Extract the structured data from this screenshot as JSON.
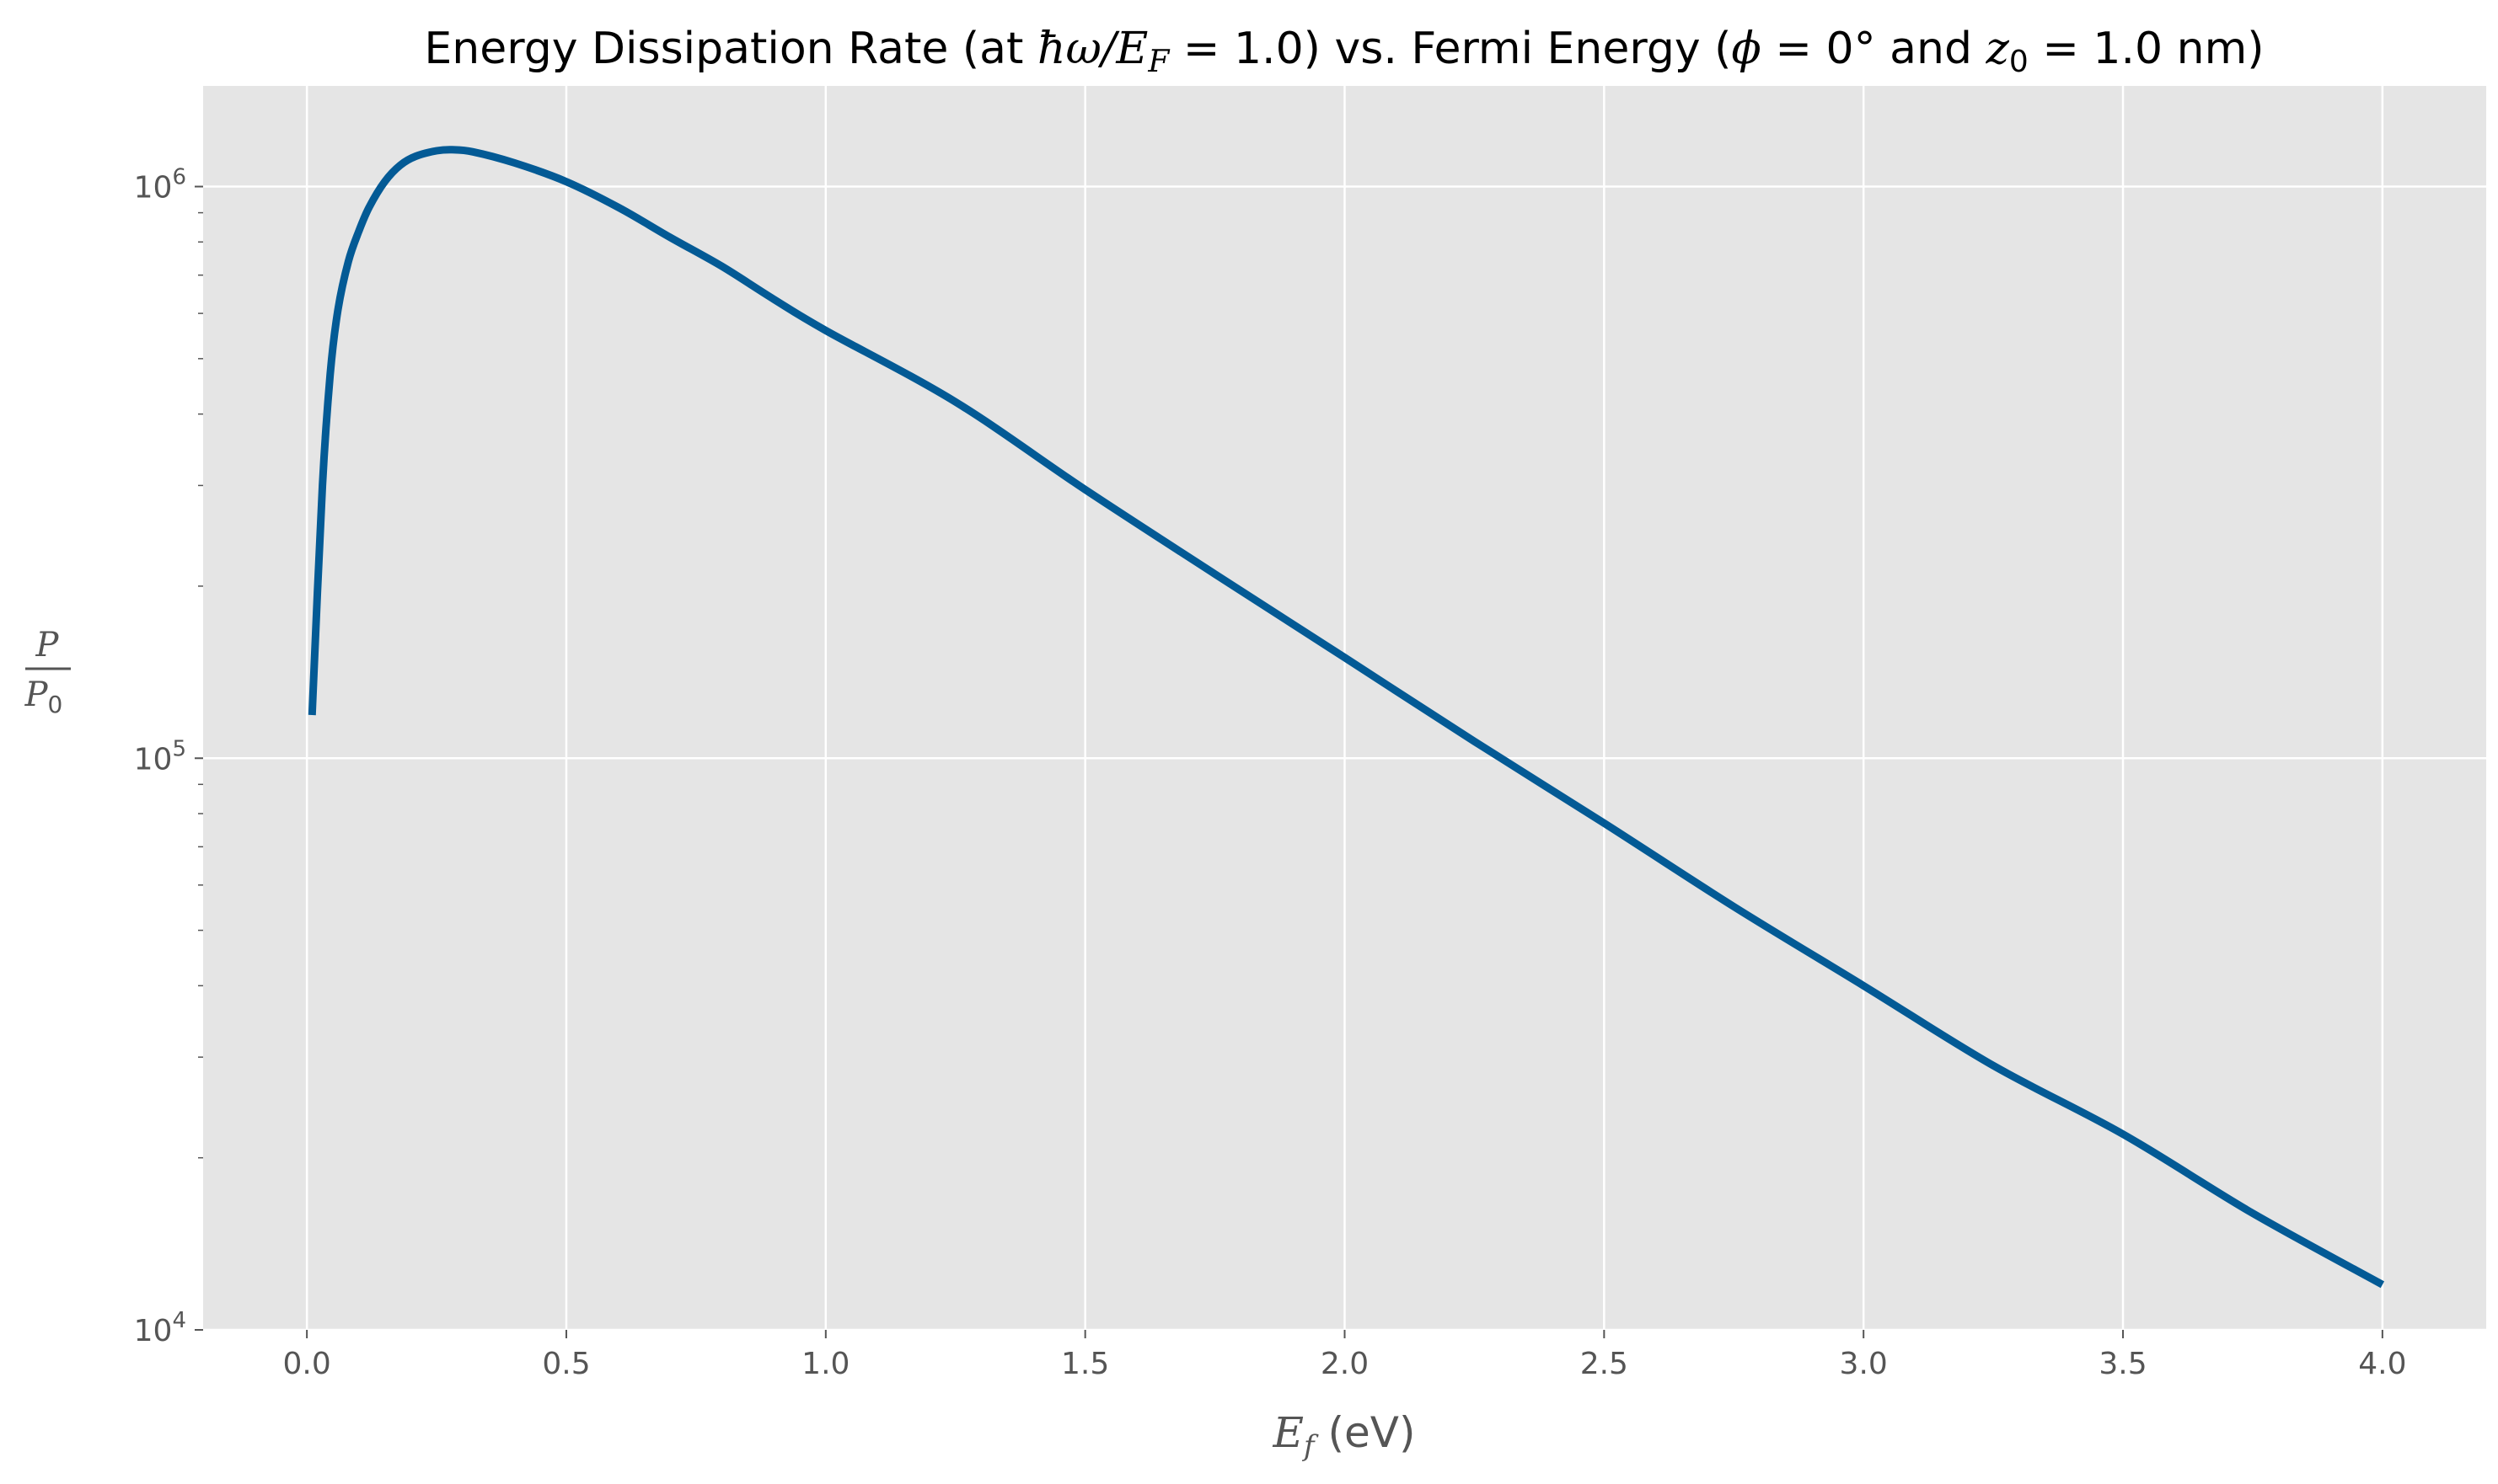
{
  "chart_data": {
    "type": "line",
    "title": {
      "prefix": "Energy Dissipation Rate (at ",
      "math1": "ħω/E",
      "math1_sub": "F",
      "mid1": " = 1.0) vs. Fermi Energy (",
      "math2": "ϕ",
      "mid2": " = 0° and ",
      "math3": "z",
      "math3_sub": "0",
      "suffix": " = 1.0 nm)"
    },
    "xlabel": {
      "math": "E",
      "sub": "f",
      "unit": " (eV)"
    },
    "ylabel": {
      "numerator": "P",
      "denominator": "P",
      "denominator_sub": "0"
    },
    "xlim": [
      -0.2,
      4.2
    ],
    "ylim": [
      10000,
      1500000
    ],
    "yscale": "log",
    "x_ticks": [
      "0.0",
      "0.5",
      "1.0",
      "1.5",
      "2.0",
      "2.5",
      "3.0",
      "3.5",
      "4.0"
    ],
    "x_tick_values": [
      0.0,
      0.5,
      1.0,
      1.5,
      2.0,
      2.5,
      3.0,
      3.5,
      4.0
    ],
    "y_ticks": [
      {
        "value": 10000,
        "base": "10",
        "exp": "4"
      },
      {
        "value": 100000,
        "base": "10",
        "exp": "5"
      },
      {
        "value": 1000000,
        "base": "10",
        "exp": "6"
      }
    ],
    "grid": true,
    "background": "#E5E5E5",
    "grid_color": "#FFFFFF",
    "line_color": "#035A95",
    "series": [
      {
        "x": [
          0.01,
          0.03,
          0.045,
          0.06,
          0.08,
          0.1,
          0.12,
          0.15,
          0.18,
          0.21,
          0.25,
          0.28,
          0.32,
          0.4,
          0.5,
          0.6,
          0.7,
          0.8,
          0.9,
          1.0,
          1.25,
          1.5,
          1.75,
          2.0,
          2.25,
          2.5,
          2.75,
          3.0,
          3.25,
          3.5,
          3.75,
          4.0
        ],
        "y": [
          119000,
          300000,
          470000,
          610000,
          740000,
          835000,
          920000,
          1020000,
          1090000,
          1130000,
          1155000,
          1160000,
          1150000,
          1100000,
          1020000,
          920000,
          815000,
          725000,
          635000,
          560000,
          420000,
          295000,
          210000,
          150000,
          107000,
          77000,
          55000,
          40000,
          29000,
          22000,
          16000,
          12000
        ]
      }
    ]
  }
}
